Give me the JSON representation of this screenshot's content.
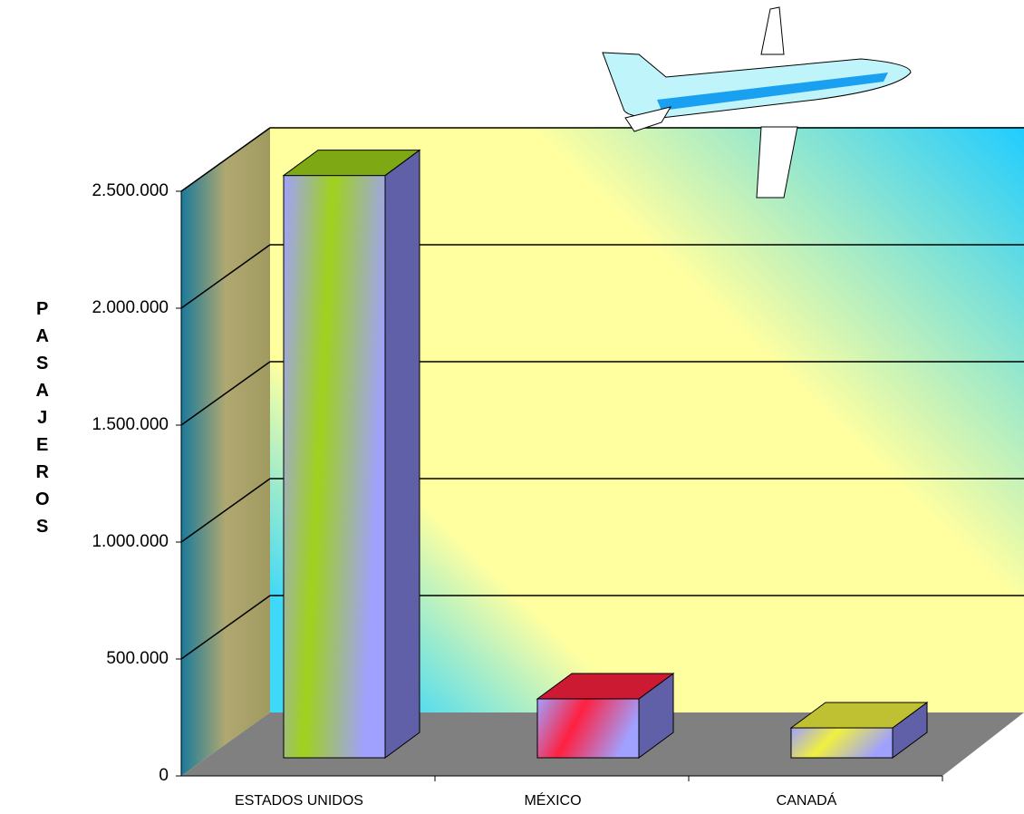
{
  "chart_data": {
    "type": "bar3d",
    "y_label": "PASAJEROS",
    "categories": [
      "ESTADOS UNIDOS",
      "MÉXICO",
      "CANADÁ"
    ],
    "values": [
      2490000,
      252000,
      128000
    ],
    "colors": [
      [
        "#9fd21a",
        "#a0a0ff"
      ],
      [
        "#ff2040",
        "#a0a0ff"
      ],
      [
        "#f0f040",
        "#a0a0ff"
      ]
    ],
    "ylim": [
      0,
      2500000
    ],
    "yticks": [
      0,
      {
        "value": 500000,
        "label": "500.000"
      },
      {
        "value": 1000000,
        "label": "1.000.000"
      },
      {
        "value": 1500000,
        "label": "1.500.000"
      },
      {
        "value": 2000000,
        "label": "2.000.000"
      },
      {
        "value": 2500000,
        "label": "2.500.000"
      }
    ],
    "grid": true
  }
}
